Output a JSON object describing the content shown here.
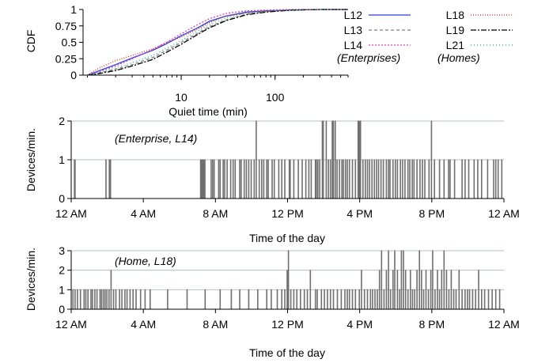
{
  "chart_data": [
    {
      "id": "cdf",
      "type": "line",
      "xlabel": "Quiet time (min)",
      "ylabel": "CDF",
      "xscale": "log",
      "xlim": [
        0.9,
        600
      ],
      "ylim": [
        0,
        1
      ],
      "xticks": [
        {
          "value": 10,
          "label": "10"
        },
        {
          "value": 100,
          "label": "100"
        }
      ],
      "yticks": [
        {
          "value": 0,
          "label": "0"
        },
        {
          "value": 0.25,
          "label": "0.25"
        },
        {
          "value": 0.5,
          "label": "0.5"
        },
        {
          "value": 0.75,
          "label": "0.75"
        },
        {
          "value": 1,
          "label": "1"
        }
      ],
      "legend_position": "right",
      "legend_groups": [
        "(Enterprises)",
        "(Homes)"
      ],
      "series": [
        {
          "name": "L12",
          "color": "#2b3fd6",
          "dash": "",
          "x": [
            1,
            1.3,
            2,
            3,
            5,
            7,
            10,
            15,
            20,
            30,
            50,
            80,
            150,
            300,
            600
          ],
          "y": [
            0,
            0.06,
            0.16,
            0.26,
            0.38,
            0.48,
            0.6,
            0.72,
            0.82,
            0.9,
            0.96,
            0.98,
            0.99,
            1,
            1
          ]
        },
        {
          "name": "L13",
          "color": "#808080",
          "dash": "4,3",
          "x": [
            1,
            1.3,
            2,
            3,
            5,
            7,
            10,
            15,
            20,
            30,
            50,
            80,
            150,
            300,
            600
          ],
          "y": [
            0,
            0.03,
            0.09,
            0.16,
            0.27,
            0.38,
            0.5,
            0.64,
            0.74,
            0.84,
            0.93,
            0.97,
            0.99,
            1,
            1
          ]
        },
        {
          "name": "L14",
          "color": "#cc44cc",
          "dash": "2,2",
          "x": [
            1,
            1.3,
            2,
            3,
            5,
            7,
            10,
            15,
            20,
            30,
            50,
            80,
            150,
            300,
            600
          ],
          "y": [
            0,
            0.05,
            0.14,
            0.25,
            0.39,
            0.5,
            0.63,
            0.77,
            0.86,
            0.94,
            0.98,
            0.99,
            1,
            1,
            1
          ]
        },
        {
          "name": "L18",
          "color": "#dd2222",
          "dash": "1,2",
          "x": [
            1,
            1.3,
            2,
            3,
            5,
            7,
            10,
            15,
            20,
            30,
            50,
            80,
            150,
            300,
            600
          ],
          "y": [
            0,
            0.1,
            0.22,
            0.3,
            0.4,
            0.5,
            0.58,
            0.7,
            0.8,
            0.9,
            0.95,
            0.98,
            0.99,
            1,
            1
          ]
        },
        {
          "name": "L19",
          "color": "#000000",
          "dash": "7,2,2,2",
          "x": [
            1,
            1.3,
            2,
            3,
            5,
            7,
            10,
            15,
            20,
            30,
            50,
            80,
            150,
            300,
            600
          ],
          "y": [
            0,
            0.02,
            0.07,
            0.14,
            0.24,
            0.35,
            0.47,
            0.62,
            0.72,
            0.83,
            0.92,
            0.96,
            0.99,
            1,
            1
          ]
        },
        {
          "name": "L21",
          "color": "#22aaaa",
          "dash": "1,3",
          "x": [
            1,
            1.3,
            2,
            3,
            5,
            7,
            10,
            15,
            20,
            30,
            50,
            80,
            150,
            300,
            600
          ],
          "y": [
            0,
            0.04,
            0.11,
            0.19,
            0.3,
            0.41,
            0.53,
            0.67,
            0.77,
            0.87,
            0.95,
            0.98,
            0.99,
            1,
            1
          ]
        }
      ]
    },
    {
      "id": "enterprise",
      "type": "line",
      "annotation": "(Enterprise, L14)",
      "xlabel": "Time of the day",
      "ylabel": "Devices/min.",
      "xlim": [
        0,
        1440
      ],
      "ylim": [
        0,
        2
      ],
      "grid": true,
      "color": "#707070",
      "xticks": [
        {
          "value": 0,
          "label": "12 AM"
        },
        {
          "value": 240,
          "label": "4 AM"
        },
        {
          "value": 480,
          "label": "8 AM"
        },
        {
          "value": 720,
          "label": "12 PM"
        },
        {
          "value": 960,
          "label": "4 PM"
        },
        {
          "value": 1200,
          "label": "8 PM"
        },
        {
          "value": 1440,
          "label": "12 AM"
        }
      ],
      "yticks": [
        {
          "value": 0,
          "label": "0"
        },
        {
          "value": 1,
          "label": "1"
        },
        {
          "value": 2,
          "label": "2"
        }
      ],
      "events": [
        [
          10,
          1
        ],
        [
          12,
          1
        ],
        [
          115,
          1
        ],
        [
          126,
          1
        ],
        [
          130,
          1
        ],
        [
          430,
          1
        ],
        [
          433,
          1
        ],
        [
          436,
          1
        ],
        [
          440,
          1
        ],
        [
          444,
          1
        ],
        [
          465,
          1
        ],
        [
          470,
          1
        ],
        [
          475,
          1
        ],
        [
          490,
          1
        ],
        [
          495,
          1
        ],
        [
          505,
          1
        ],
        [
          510,
          1
        ],
        [
          518,
          1
        ],
        [
          530,
          1
        ],
        [
          538,
          1
        ],
        [
          545,
          1
        ],
        [
          560,
          1
        ],
        [
          565,
          1
        ],
        [
          575,
          1
        ],
        [
          582,
          1
        ],
        [
          590,
          1
        ],
        [
          598,
          1
        ],
        [
          608,
          1
        ],
        [
          615,
          2
        ],
        [
          625,
          1
        ],
        [
          633,
          1
        ],
        [
          640,
          1
        ],
        [
          650,
          1
        ],
        [
          655,
          1
        ],
        [
          668,
          1
        ],
        [
          675,
          1
        ],
        [
          690,
          1
        ],
        [
          700,
          1
        ],
        [
          710,
          1
        ],
        [
          725,
          1
        ],
        [
          728,
          1
        ],
        [
          740,
          1
        ],
        [
          755,
          1
        ],
        [
          768,
          1
        ],
        [
          780,
          1
        ],
        [
          790,
          1
        ],
        [
          798,
          1
        ],
        [
          812,
          1
        ],
        [
          815,
          1
        ],
        [
          820,
          1
        ],
        [
          826,
          1
        ],
        [
          835,
          2
        ],
        [
          838,
          2
        ],
        [
          848,
          2
        ],
        [
          855,
          1
        ],
        [
          862,
          1
        ],
        [
          868,
          2
        ],
        [
          872,
          2
        ],
        [
          878,
          2
        ],
        [
          884,
          1
        ],
        [
          892,
          1
        ],
        [
          900,
          1
        ],
        [
          905,
          1
        ],
        [
          912,
          1
        ],
        [
          918,
          1
        ],
        [
          925,
          1
        ],
        [
          935,
          1
        ],
        [
          945,
          1
        ],
        [
          954,
          2
        ],
        [
          958,
          2
        ],
        [
          962,
          2
        ],
        [
          970,
          1
        ],
        [
          978,
          1
        ],
        [
          985,
          1
        ],
        [
          992,
          1
        ],
        [
          1000,
          1
        ],
        [
          1008,
          1
        ],
        [
          1015,
          1
        ],
        [
          1022,
          1
        ],
        [
          1030,
          1
        ],
        [
          1038,
          1
        ],
        [
          1048,
          1
        ],
        [
          1055,
          1
        ],
        [
          1060,
          1
        ],
        [
          1070,
          1
        ],
        [
          1078,
          1
        ],
        [
          1085,
          1
        ],
        [
          1095,
          1
        ],
        [
          1102,
          1
        ],
        [
          1110,
          1
        ],
        [
          1120,
          1
        ],
        [
          1126,
          1
        ],
        [
          1134,
          1
        ],
        [
          1140,
          1
        ],
        [
          1150,
          1
        ],
        [
          1160,
          1
        ],
        [
          1168,
          1
        ],
        [
          1176,
          1
        ],
        [
          1190,
          1
        ],
        [
          1198,
          2
        ],
        [
          1208,
          1
        ],
        [
          1225,
          1
        ],
        [
          1240,
          1
        ],
        [
          1255,
          1
        ],
        [
          1260,
          1
        ],
        [
          1275,
          1
        ],
        [
          1300,
          1
        ],
        [
          1310,
          1
        ],
        [
          1322,
          1
        ],
        [
          1340,
          1
        ],
        [
          1352,
          1
        ],
        [
          1365,
          1
        ],
        [
          1385,
          1
        ],
        [
          1405,
          1
        ],
        [
          1412,
          1
        ],
        [
          1420,
          1
        ],
        [
          1432,
          1
        ]
      ]
    },
    {
      "id": "home",
      "type": "line",
      "annotation": "(Home, L18)",
      "xlabel": "Time of the day",
      "ylabel": "Devices/min.",
      "xlim": [
        0,
        1440
      ],
      "ylim": [
        0,
        3
      ],
      "grid": true,
      "color": "#707070",
      "xticks": [
        {
          "value": 0,
          "label": "12 AM"
        },
        {
          "value": 240,
          "label": "4 AM"
        },
        {
          "value": 480,
          "label": "8 AM"
        },
        {
          "value": 720,
          "label": "12 PM"
        },
        {
          "value": 960,
          "label": "4 PM"
        },
        {
          "value": 1200,
          "label": "8 PM"
        },
        {
          "value": 1440,
          "label": "12 AM"
        }
      ],
      "yticks": [
        {
          "value": 0,
          "label": "0"
        },
        {
          "value": 1,
          "label": "1"
        },
        {
          "value": 2,
          "label": "2"
        },
        {
          "value": 3,
          "label": "3"
        }
      ],
      "events": [
        [
          5,
          1
        ],
        [
          12,
          1
        ],
        [
          20,
          1
        ],
        [
          30,
          1
        ],
        [
          42,
          1
        ],
        [
          48,
          1
        ],
        [
          55,
          1
        ],
        [
          65,
          1
        ],
        [
          70,
          1
        ],
        [
          78,
          1
        ],
        [
          85,
          1
        ],
        [
          95,
          1
        ],
        [
          100,
          1
        ],
        [
          106,
          1
        ],
        [
          112,
          1
        ],
        [
          118,
          1
        ],
        [
          125,
          1
        ],
        [
          132,
          2
        ],
        [
          140,
          1
        ],
        [
          148,
          1
        ],
        [
          160,
          1
        ],
        [
          168,
          1
        ],
        [
          178,
          1
        ],
        [
          185,
          1
        ],
        [
          195,
          1
        ],
        [
          205,
          1
        ],
        [
          215,
          1
        ],
        [
          230,
          1
        ],
        [
          245,
          1
        ],
        [
          262,
          1
        ],
        [
          320,
          1
        ],
        [
          385,
          1
        ],
        [
          445,
          1
        ],
        [
          495,
          1
        ],
        [
          532,
          1
        ],
        [
          560,
          1
        ],
        [
          590,
          1
        ],
        [
          620,
          1
        ],
        [
          650,
          1
        ],
        [
          665,
          1
        ],
        [
          685,
          1
        ],
        [
          700,
          1
        ],
        [
          710,
          1
        ],
        [
          718,
          2
        ],
        [
          722,
          3
        ],
        [
          730,
          1
        ],
        [
          740,
          1
        ],
        [
          750,
          1
        ],
        [
          762,
          1
        ],
        [
          775,
          1
        ],
        [
          785,
          1
        ],
        [
          795,
          2
        ],
        [
          812,
          1
        ],
        [
          818,
          1
        ],
        [
          832,
          1
        ],
        [
          842,
          1
        ],
        [
          852,
          1
        ],
        [
          862,
          1
        ],
        [
          872,
          1
        ],
        [
          885,
          1
        ],
        [
          898,
          1
        ],
        [
          910,
          1
        ],
        [
          918,
          1
        ],
        [
          925,
          1
        ],
        [
          935,
          1
        ],
        [
          945,
          1
        ],
        [
          958,
          1
        ],
        [
          965,
          2
        ],
        [
          975,
          1
        ],
        [
          985,
          1
        ],
        [
          995,
          1
        ],
        [
          1002,
          1
        ],
        [
          1010,
          1
        ],
        [
          1018,
          1
        ],
        [
          1025,
          2
        ],
        [
          1032,
          3
        ],
        [
          1040,
          1
        ],
        [
          1048,
          2
        ],
        [
          1055,
          3
        ],
        [
          1062,
          1
        ],
        [
          1070,
          2
        ],
        [
          1076,
          3
        ],
        [
          1085,
          2
        ],
        [
          1092,
          1
        ],
        [
          1098,
          3
        ],
        [
          1105,
          3
        ],
        [
          1112,
          2
        ],
        [
          1120,
          1
        ],
        [
          1128,
          2
        ],
        [
          1135,
          1
        ],
        [
          1142,
          1
        ],
        [
          1150,
          2
        ],
        [
          1158,
          3
        ],
        [
          1165,
          2
        ],
        [
          1172,
          1
        ],
        [
          1180,
          2
        ],
        [
          1188,
          1
        ],
        [
          1196,
          2
        ],
        [
          1202,
          3
        ],
        [
          1210,
          1
        ],
        [
          1218,
          2
        ],
        [
          1225,
          1
        ],
        [
          1232,
          2
        ],
        [
          1240,
          3
        ],
        [
          1248,
          2
        ],
        [
          1256,
          1
        ],
        [
          1264,
          2
        ],
        [
          1272,
          1
        ],
        [
          1280,
          1
        ],
        [
          1290,
          2
        ],
        [
          1300,
          1
        ],
        [
          1310,
          1
        ],
        [
          1318,
          1
        ],
        [
          1325,
          1
        ],
        [
          1335,
          1
        ],
        [
          1345,
          1
        ],
        [
          1355,
          2
        ],
        [
          1365,
          1
        ],
        [
          1375,
          1
        ],
        [
          1388,
          1
        ],
        [
          1400,
          1
        ],
        [
          1412,
          1
        ],
        [
          1425,
          1
        ]
      ]
    }
  ]
}
